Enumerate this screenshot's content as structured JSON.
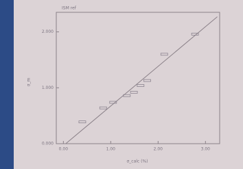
{
  "chart_data": {
    "type": "scatter",
    "title": "ISM ref",
    "x_label": "σ_calc (%)",
    "y_label": "σ_m",
    "x": [
      0.4,
      0.84,
      1.05,
      1.34,
      1.49,
      1.63,
      1.77,
      2.13,
      2.78
    ],
    "values": [
      0.39,
      0.64,
      0.74,
      0.86,
      0.92,
      1.04,
      1.13,
      1.6,
      1.96
    ],
    "color": "#8c8490",
    "fit_line": {
      "x": [
        0.05,
        3.25
      ],
      "values": [
        0,
        2.27
      ]
    },
    "xlim": [
      -0.15,
      3.3
    ],
    "ylim": [
      0,
      2.35
    ],
    "xticks": [
      {
        "value": 0,
        "label": "0.00"
      },
      {
        "value": 1,
        "label": "1.00"
      },
      {
        "value": 2,
        "label": "2.00"
      },
      {
        "value": 3,
        "label": "3.00"
      }
    ],
    "yticks": [
      {
        "value": 0,
        "label": "0.000"
      },
      {
        "value": 1,
        "label": "1.000"
      },
      {
        "value": 2,
        "label": "2.000"
      }
    ]
  }
}
